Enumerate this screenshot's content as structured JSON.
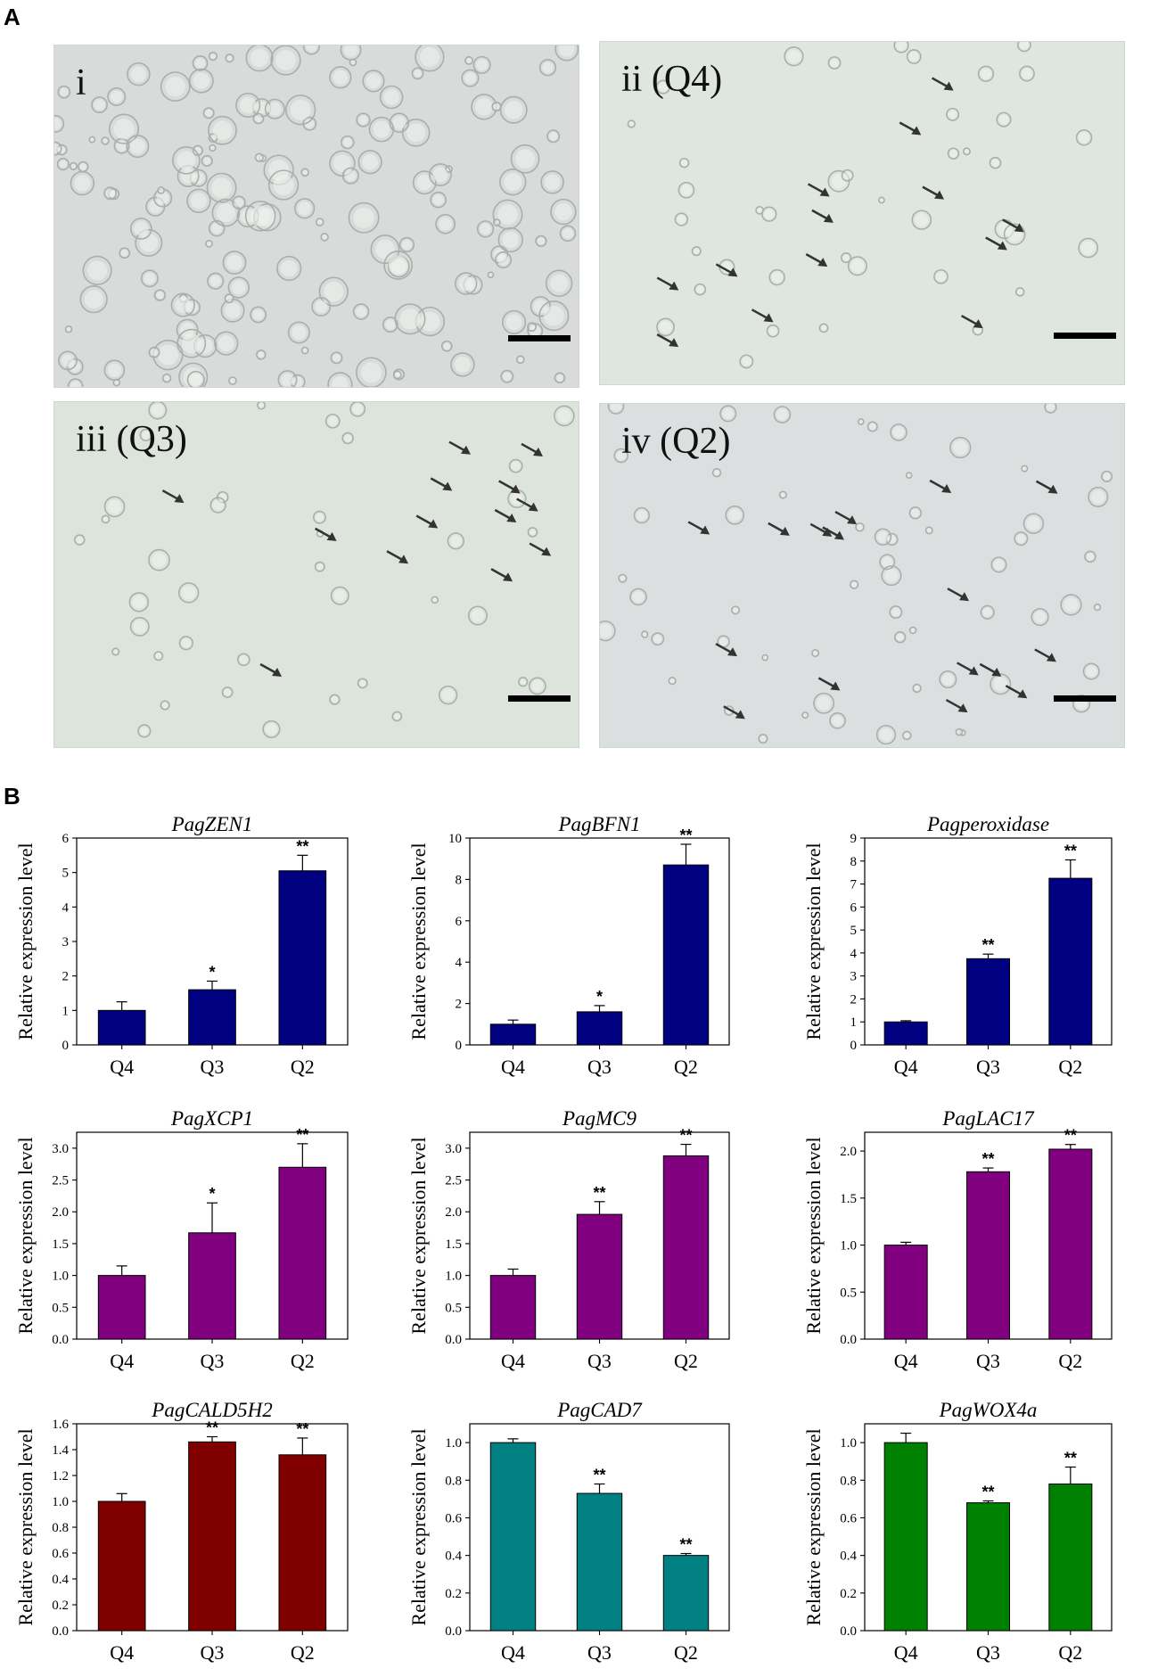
{
  "panels": {
    "a_label": "A",
    "b_label": "B"
  },
  "micrographs": [
    {
      "label": "i",
      "bg": "#d9dada",
      "has_arrows": false
    },
    {
      "label": "ii (Q4)",
      "bg": "#dfe5df",
      "has_arrows": true
    },
    {
      "label": "iii (Q3)",
      "bg": "#dde4dc",
      "has_arrows": true
    },
    {
      "label": "iv (Q2)",
      "bg": "#dcdfe0",
      "has_arrows": true
    }
  ],
  "chart_data": [
    {
      "type": "bar",
      "title": "PagZEN1",
      "ylabel": "Relative expression level",
      "categories": [
        "Q4",
        "Q3",
        "Q2"
      ],
      "values": [
        1.0,
        1.6,
        5.05
      ],
      "errors": [
        0.25,
        0.25,
        0.45
      ],
      "significance": [
        "",
        "*",
        "**"
      ],
      "ylim": [
        0,
        6
      ],
      "yticks": [
        0,
        1,
        2,
        3,
        4,
        5,
        6
      ],
      "color": "#000080"
    },
    {
      "type": "bar",
      "title": "PagBFN1",
      "ylabel": "Relative expression level",
      "categories": [
        "Q4",
        "Q3",
        "Q2"
      ],
      "values": [
        1.0,
        1.6,
        8.7
      ],
      "errors": [
        0.2,
        0.3,
        1.0
      ],
      "significance": [
        "",
        "*",
        "**"
      ],
      "ylim": [
        0,
        10
      ],
      "yticks": [
        0,
        2,
        4,
        6,
        8,
        10
      ],
      "color": "#000080"
    },
    {
      "type": "bar",
      "title": "Pagperoxidase",
      "ylabel": "Relative expression level",
      "categories": [
        "Q4",
        "Q3",
        "Q2"
      ],
      "values": [
        1.0,
        3.75,
        7.25
      ],
      "errors": [
        0.05,
        0.2,
        0.8
      ],
      "significance": [
        "",
        "**",
        "**"
      ],
      "ylim": [
        0,
        9
      ],
      "yticks": [
        0,
        1,
        2,
        3,
        4,
        5,
        6,
        7,
        8,
        9
      ],
      "color": "#000080"
    },
    {
      "type": "bar",
      "title": "PagXCP1",
      "ylabel": "Relative expression level",
      "categories": [
        "Q4",
        "Q3",
        "Q2"
      ],
      "values": [
        1.0,
        1.67,
        2.7
      ],
      "errors": [
        0.15,
        0.47,
        0.37
      ],
      "significance": [
        "",
        "*",
        "**"
      ],
      "ylim": [
        0,
        3.25
      ],
      "yticks": [
        "0.0",
        "0.5",
        "1.0",
        "1.5",
        "2.0",
        "2.5",
        "3.0"
      ],
      "color": "#800080"
    },
    {
      "type": "bar",
      "title": "PagMC9",
      "ylabel": "Relative expression level",
      "categories": [
        "Q4",
        "Q3",
        "Q2"
      ],
      "values": [
        1.0,
        1.96,
        2.88
      ],
      "errors": [
        0.1,
        0.2,
        0.18
      ],
      "significance": [
        "",
        "**",
        "**"
      ],
      "ylim": [
        0,
        3.25
      ],
      "yticks": [
        "0.0",
        "0.5",
        "1.0",
        "1.5",
        "2.0",
        "2.5",
        "3.0"
      ],
      "color": "#800080"
    },
    {
      "type": "bar",
      "title": "PagLAC17",
      "ylabel": "Relative expression level",
      "categories": [
        "Q4",
        "Q3",
        "Q2"
      ],
      "values": [
        1.0,
        1.78,
        2.02
      ],
      "errors": [
        0.03,
        0.04,
        0.05
      ],
      "significance": [
        "",
        "**",
        "**"
      ],
      "ylim": [
        0,
        2.2
      ],
      "yticks": [
        "0.0",
        "0.5",
        "1.0",
        "1.5",
        "2.0"
      ],
      "color": "#800080"
    },
    {
      "type": "bar",
      "title": "PagCALD5H2",
      "ylabel": "Relative expression level",
      "categories": [
        "Q4",
        "Q3",
        "Q2"
      ],
      "values": [
        1.0,
        1.46,
        1.36
      ],
      "errors": [
        0.06,
        0.04,
        0.13
      ],
      "significance": [
        "",
        "**",
        "**"
      ],
      "ylim": [
        0,
        1.6
      ],
      "yticks": [
        "0.0",
        "0.2",
        "0.4",
        "0.6",
        "0.8",
        "1.0",
        "1.2",
        "1.4",
        "1.6"
      ],
      "color": "#800000"
    },
    {
      "type": "bar",
      "title": "PagCAD7",
      "ylabel": "Relative expression level",
      "categories": [
        "Q4",
        "Q3",
        "Q2"
      ],
      "values": [
        1.0,
        0.73,
        0.4
      ],
      "errors": [
        0.02,
        0.05,
        0.01
      ],
      "significance": [
        "",
        "**",
        "**"
      ],
      "ylim": [
        0,
        1.1
      ],
      "yticks": [
        "0.0",
        "0.2",
        "0.4",
        "0.6",
        "0.8",
        "1.0"
      ],
      "color": "#008080"
    },
    {
      "type": "bar",
      "title": "PagWOX4a",
      "ylabel": "Relative expression level",
      "categories": [
        "Q4",
        "Q3",
        "Q2"
      ],
      "values": [
        1.0,
        0.68,
        0.78
      ],
      "errors": [
        0.05,
        0.01,
        0.09
      ],
      "significance": [
        "",
        "**",
        "**"
      ],
      "ylim": [
        0,
        1.1
      ],
      "yticks": [
        "0.0",
        "0.2",
        "0.4",
        "0.6",
        "0.8",
        "1.0"
      ],
      "color": "#008000"
    }
  ]
}
